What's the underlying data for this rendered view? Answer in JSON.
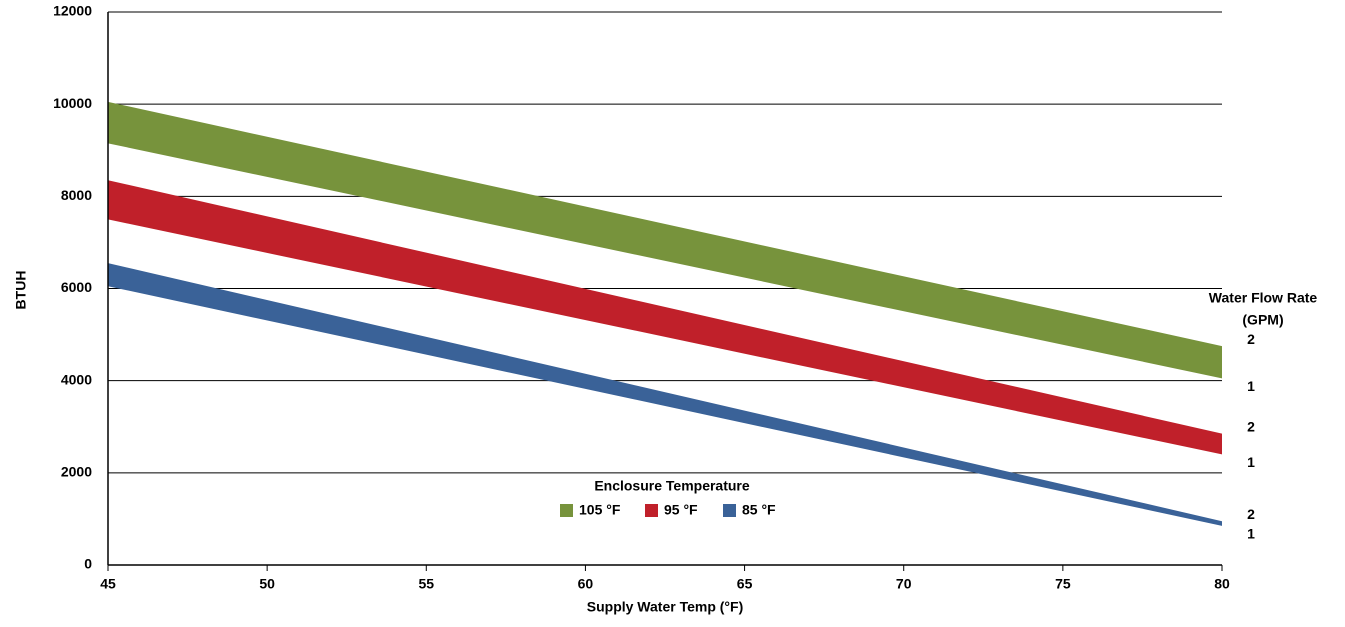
{
  "chart_data": {
    "type": "band",
    "x_label": "Supply Water Temp (°F)",
    "y_label": "BTUH",
    "x": [
      45,
      80
    ],
    "xlim": [
      45,
      80
    ],
    "xticks": [
      45,
      50,
      55,
      60,
      65,
      70,
      75,
      80
    ],
    "ylim": [
      0,
      12000
    ],
    "yticks": [
      0,
      2000,
      4000,
      6000,
      8000,
      10000,
      12000
    ],
    "grid": true,
    "legend_title": "Enclosure Temperature",
    "flow_title": [
      "Water Flow Rate",
      "(GPM)"
    ],
    "series": [
      {
        "name": "105 °F",
        "color": "#77933c",
        "low": [
          9150,
          4050
        ],
        "high": [
          10050,
          4750
        ],
        "flow_labels": [
          "1",
          "2"
        ]
      },
      {
        "name": "95 °F",
        "color": "#c0202a",
        "low": [
          7500,
          2400
        ],
        "high": [
          8350,
          2850
        ],
        "flow_labels": [
          "1",
          "2"
        ]
      },
      {
        "name": "85 °F",
        "color": "#3a6298",
        "low": [
          6050,
          850
        ],
        "high": [
          6550,
          950
        ],
        "flow_labels": [
          "1",
          "2"
        ]
      }
    ]
  }
}
